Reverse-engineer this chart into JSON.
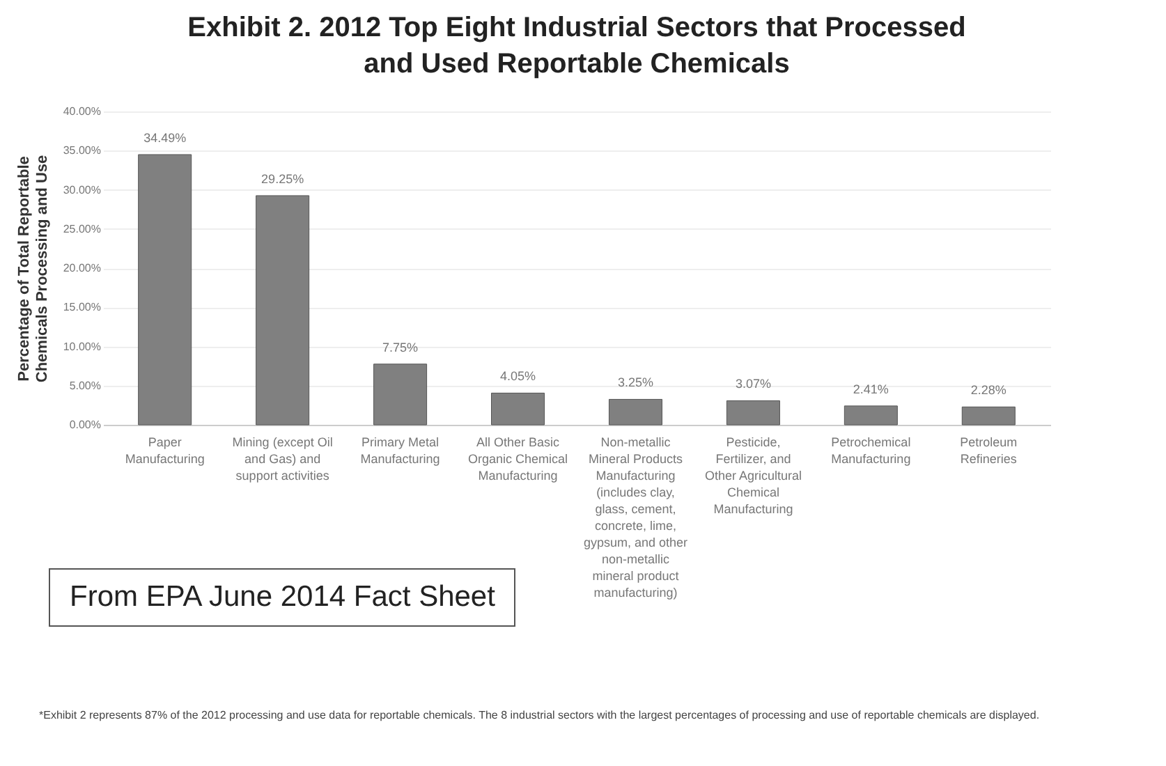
{
  "chart_data": {
    "type": "bar",
    "title": "Exhibit 2. 2012 Top Eight Industrial Sectors that Processed and Used Reportable Chemicals",
    "ylabel": "Percentage of Total Reportable Chemicals Processing and Use",
    "categories": [
      "Paper Manufacturing",
      "Mining (except Oil and Gas) and support activities",
      "Primary Metal Manufacturing",
      "All Other Basic Organic Chemical Manufacturing",
      "Non-metallic Mineral Products Manufacturing (includes clay, glass, cement, concrete, lime, gypsum, and other non-metallic mineral product manufacturing)",
      "Pesticide, Fertilizer, and Other Agricultural Chemical Manufacturing",
      "Petrochemical Manufacturing",
      "Petroleum Refineries"
    ],
    "values": [
      34.49,
      29.25,
      7.75,
      4.05,
      3.25,
      3.07,
      2.41,
      2.28
    ],
    "value_labels": [
      "34.49%",
      "29.25%",
      "7.75%",
      "4.05%",
      "3.25%",
      "3.07%",
      "2.41%",
      "2.28%"
    ],
    "color": "#808080",
    "ylim": [
      0,
      40
    ],
    "yticks": [
      {
        "value": 0,
        "label": "0.00%"
      },
      {
        "value": 5,
        "label": "5.00%"
      },
      {
        "value": 10,
        "label": "10.00%"
      },
      {
        "value": 15,
        "label": "15.00%"
      },
      {
        "value": 20,
        "label": "20.00%"
      },
      {
        "value": 25,
        "label": "25.00%"
      },
      {
        "value": 30,
        "label": "30.00%"
      },
      {
        "value": 35,
        "label": "35.00%"
      },
      {
        "value": 40,
        "label": "40.00%"
      }
    ],
    "grid": "y",
    "annotations": [
      "From EPA June 2014 Fact Sheet",
      "*Exhibit 2 represents 87% of the 2012 processing and use data for reportable chemicals. The 8 industrial sectors with the largest percentages of processing and use of reportable chemicals are displayed."
    ]
  }
}
